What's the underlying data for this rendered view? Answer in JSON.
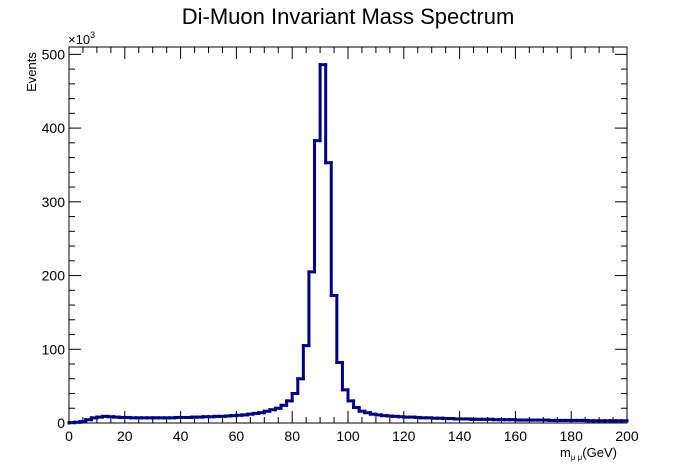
{
  "chart_data": {
    "type": "line",
    "title": "Di-Muon Invariant Mass Spectrum",
    "xlabel": "m_{μμ}(GeV)",
    "xlabel_main": "m",
    "xlabel_sub": "μ μ",
    "xlabel_unit": "(GeV)",
    "ylabel": "Events",
    "y_multiplier_label": "×10",
    "y_multiplier_exp": "3",
    "xlim": [
      0,
      200
    ],
    "ylim": [
      0,
      510
    ],
    "x_ticks": [
      "0",
      "20",
      "40",
      "60",
      "80",
      "100",
      "120",
      "140",
      "160",
      "180",
      "200"
    ],
    "y_ticks": [
      "0",
      "100",
      "200",
      "300",
      "400",
      "500"
    ],
    "line_color": "#00008b",
    "histogram": {
      "bin_width": 2,
      "bin_low_edges": [
        0,
        2,
        4,
        6,
        8,
        10,
        12,
        14,
        16,
        18,
        20,
        22,
        24,
        26,
        28,
        30,
        32,
        34,
        36,
        38,
        40,
        42,
        44,
        46,
        48,
        50,
        52,
        54,
        56,
        58,
        60,
        62,
        64,
        66,
        68,
        70,
        72,
        74,
        76,
        78,
        80,
        82,
        84,
        86,
        88,
        90,
        92,
        94,
        96,
        98,
        100,
        102,
        104,
        106,
        108,
        110,
        112,
        114,
        116,
        118,
        120,
        122,
        124,
        126,
        128,
        130,
        132,
        134,
        136,
        138,
        140,
        142,
        144,
        146,
        148,
        150,
        152,
        154,
        156,
        158,
        160,
        162,
        164,
        166,
        168,
        170,
        172,
        174,
        176,
        178,
        180,
        182,
        184,
        186,
        188,
        190,
        192,
        194,
        196,
        198
      ],
      "values_thousands": [
        0.5,
        1.0,
        2.0,
        4.5,
        7.0,
        8.0,
        9.0,
        8.5,
        8.0,
        7.5,
        7.5,
        7.0,
        7.0,
        7.0,
        7.0,
        7.0,
        7.0,
        7.0,
        7.0,
        7.5,
        7.5,
        7.5,
        8.0,
        8.0,
        8.5,
        8.5,
        9.0,
        9.0,
        9.5,
        10.0,
        10.5,
        11.0,
        12.0,
        13.0,
        14.0,
        16.0,
        18.0,
        20.0,
        24.0,
        30.0,
        40.0,
        60.0,
        105.0,
        205.0,
        383.0,
        486.0,
        353.0,
        173.0,
        82.0,
        45.0,
        30.0,
        21.0,
        16.0,
        14.0,
        12.0,
        11.0,
        10.0,
        9.5,
        9.0,
        8.5,
        8.0,
        8.0,
        7.5,
        7.0,
        7.0,
        6.5,
        6.5,
        6.0,
        6.0,
        5.5,
        5.5,
        5.5,
        5.0,
        5.0,
        5.0,
        5.0,
        4.5,
        4.5,
        4.5,
        4.5,
        4.0,
        4.0,
        4.0,
        4.0,
        4.0,
        4.0,
        3.5,
        3.5,
        3.5,
        3.5,
        3.5,
        3.5,
        3.5,
        3.0,
        3.0,
        3.0,
        3.0,
        3.0,
        3.0,
        3.0
      ]
    }
  }
}
